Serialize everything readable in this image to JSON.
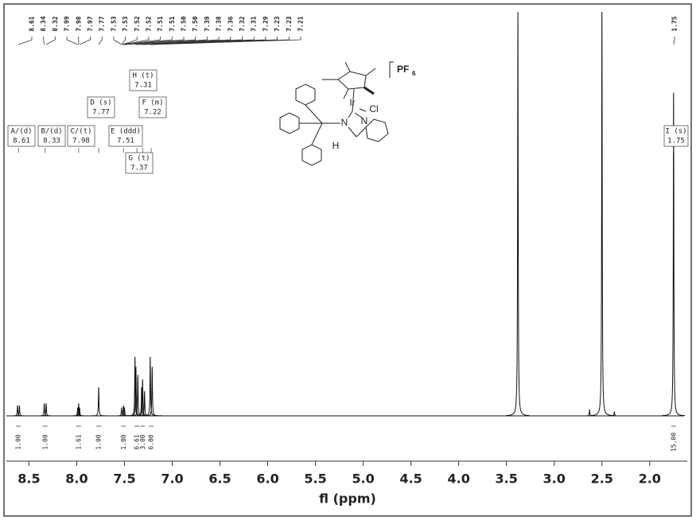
{
  "chart_data": {
    "type": "nmr",
    "x_label": "fl (ppm)",
    "xlim": [
      8.72,
      1.64
    ],
    "ylim": [
      0,
      100
    ],
    "xticks": [
      8.5,
      {
        "value": 8,
        "label": "8.0"
      },
      7.5,
      {
        "value": 7,
        "label": "7.0"
      },
      6.5,
      {
        "value": 6,
        "label": "6.0"
      },
      5.5,
      {
        "value": 5,
        "label": "5.0"
      },
      4.5,
      {
        "value": 4,
        "label": "4.0"
      },
      3.5,
      {
        "value": 3,
        "label": "3.0"
      },
      2.5,
      {
        "value": 2,
        "label": "2.0"
      }
    ],
    "color": "#111111",
    "peaks": {
      "x": [
        8.62,
        8.6,
        8.34,
        8.32,
        7.99,
        7.98,
        7.97,
        7.77,
        7.53,
        7.51,
        7.5,
        7.39,
        7.38,
        7.36,
        7.32,
        7.31,
        7.29,
        7.23,
        7.21,
        3.38,
        2.63,
        2.5,
        2.37,
        1.75
      ],
      "values": [
        2.5,
        2.5,
        3,
        3,
        2,
        3,
        2,
        7,
        2,
        2.5,
        2,
        14.5,
        12,
        10,
        7,
        9,
        6,
        14.5,
        12,
        100,
        1.5,
        100,
        1,
        80
      ]
    },
    "peak_labels": [
      8.61,
      8.34,
      8.32,
      7.99,
      7.98,
      7.97,
      7.77,
      7.53,
      7.53,
      7.52,
      7.52,
      7.51,
      7.51,
      {
        "value": 7.5,
        "label": "7.50"
      },
      {
        "value": 7.5,
        "label": "7.50"
      },
      7.39,
      7.38,
      7.36,
      7.32,
      7.31,
      7.29,
      7.23,
      7.23,
      7.21,
      1.75
    ],
    "multiplets": {
      "names": [
        "A/(d)",
        "B/(d)",
        "C/(t)",
        "D (s)",
        "E (ddd)",
        "G (t)",
        "H (t)",
        "F (m)",
        "I (s)"
      ],
      "shifts": [
        8.61,
        8.33,
        7.98,
        7.77,
        7.51,
        7.37,
        7.31,
        7.22,
        1.75
      ]
    },
    "integrals": {
      "values": [
        1,
        1,
        1.61,
        1,
        1,
        6.61,
        3,
        6,
        15
      ],
      "value_labels": [
        "1.00",
        "1.00",
        "1.61",
        "1.00",
        "1.00",
        "6.61",
        "3.00",
        "6.00",
        "15.00"
      ]
    },
    "structure": {
      "metal": "Ir",
      "halide": "Cl",
      "imine_n": "N",
      "pyridine_n": "N",
      "imine_h": "H",
      "counterion": "PF",
      "counterion_subscript": "6"
    }
  }
}
